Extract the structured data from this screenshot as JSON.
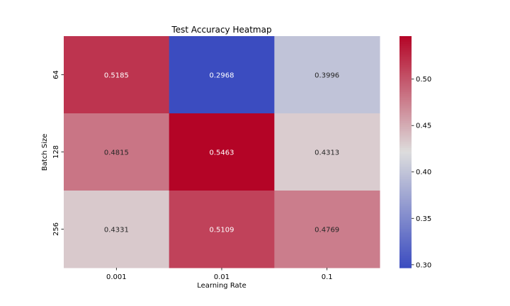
{
  "chart_data": {
    "type": "heatmap",
    "title": "Test Accuracy Heatmap",
    "xlabel": "Learning Rate",
    "ylabel": "Batch Size",
    "x_categories": [
      "0.001",
      "0.01",
      "0.1"
    ],
    "y_categories": [
      "64",
      "128",
      "256"
    ],
    "values": [
      [
        0.5185,
        0.2968,
        0.3996
      ],
      [
        0.4815,
        0.5463,
        0.4313
      ],
      [
        0.4331,
        0.5109,
        0.4769
      ]
    ],
    "colormap": "coolwarm",
    "vmin": 0.2968,
    "vmax": 0.5463,
    "colorbar_ticks": [
      "0.30",
      "0.35",
      "0.40",
      "0.45",
      "0.50"
    ],
    "colors": {
      "low": "#3b4cc0",
      "mid": "#dddddd",
      "high": "#b40426"
    }
  }
}
